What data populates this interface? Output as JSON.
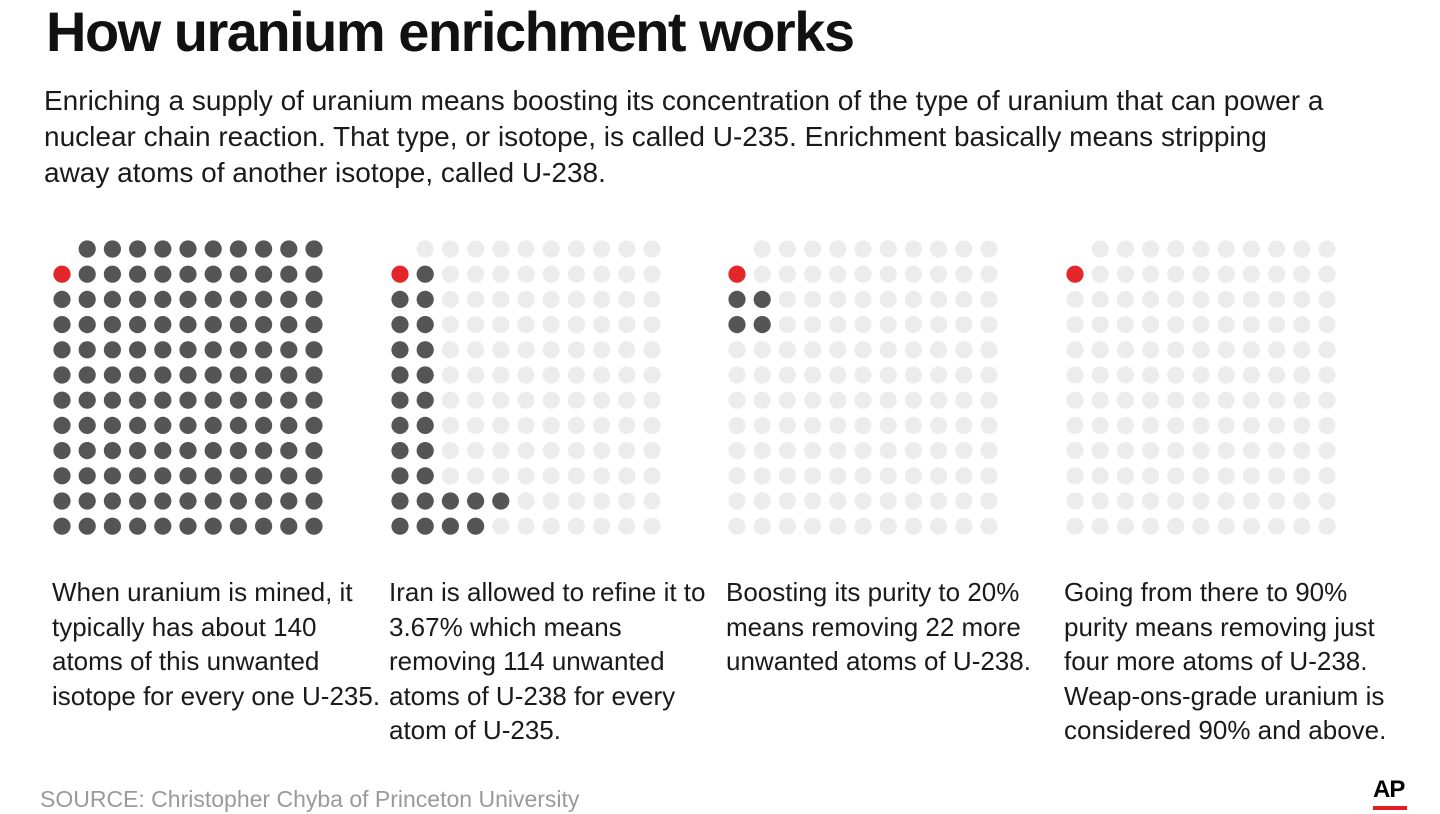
{
  "title": "How uranium enrichment works",
  "intro": "Enriching a supply of uranium means boosting its concentration of the type of uranium that can power a nuclear chain reaction. That type, or isotope, is called U-235. Enrichment basically means stripping away atoms of another isotope, called U-238.",
  "source": "SOURCE: Christopher Chyba of Princeton University",
  "logo": "AP",
  "colors": {
    "u235": "#e3262a",
    "u238": "#555555",
    "removed": "#ececec",
    "logo_bar": "#e31b23"
  },
  "chart_data": [
    {
      "type": "waffle",
      "u235_atoms": 1,
      "u238_atoms": 140,
      "removed_atoms": 0,
      "caption": "When uranium is mined, it typically has about 140 atoms of this unwanted isotope for every one U-235."
    },
    {
      "type": "waffle",
      "u235_atoms": 1,
      "u238_atoms": 26,
      "removed_atoms": 114,
      "caption": "Iran is allowed to refine it to 3.67% which means removing 114 unwanted atoms of U-238 for every atom of U-235."
    },
    {
      "type": "waffle",
      "u235_atoms": 1,
      "u238_atoms": 4,
      "removed_atoms": 136,
      "caption": "Boosting its purity to 20% means removing 22 more unwanted atoms of U-238."
    },
    {
      "type": "waffle",
      "u235_atoms": 1,
      "u238_atoms": 0,
      "removed_atoms": 140,
      "caption": "Going from there to 90% purity means removing just four more atoms of U-238. Weap-ons-grade uranium is considered 90% and above."
    }
  ]
}
